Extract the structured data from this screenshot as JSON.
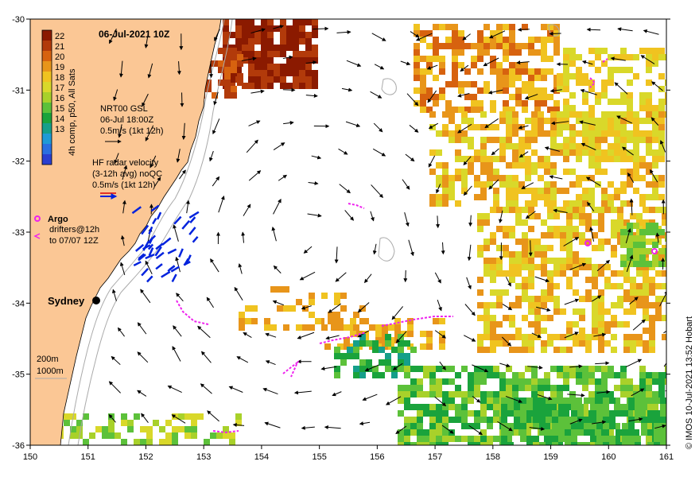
{
  "map": {
    "title": "06-Jul-2021 10Z",
    "colorbar": {
      "ticks": [
        "22",
        "21",
        "20",
        "19",
        "18",
        "17",
        "16",
        "15",
        "14",
        "13"
      ],
      "caption": "4h comp, p50, All Sats",
      "colors": [
        "#8b1a00",
        "#b23a0a",
        "#d7620f",
        "#e8951a",
        "#f0c320",
        "#d9d82a",
        "#a8d12a",
        "#5cc13a",
        "#1aa33c",
        "#159f8a",
        "#1f9ad6",
        "#2a6fe0",
        "#2a3fd0"
      ]
    },
    "legend": {
      "nrt_line1": "NRT00 GSL",
      "nrt_line2": "06-Jul 18:00Z",
      "nrt_line3": "0.5m/s (1kt 12h)",
      "hf_line1": "HF radar velocity",
      "hf_line2": "(3-12h avg) noQC",
      "hf_line3": "0.5m/s (1kt 12h)",
      "argo_label": "Argo",
      "drifters_line1": "drifters@12h",
      "drifters_line2": "to 07/07 12Z",
      "depth_200": "200m",
      "depth_1000": "1000m"
    },
    "city": "Sydney",
    "x_ticks": [
      "150",
      "151",
      "152",
      "153",
      "154",
      "155",
      "156",
      "157",
      "158",
      "159",
      "160",
      "161"
    ],
    "y_ticks": [
      "-30",
      "-31",
      "-32",
      "-33",
      "-34",
      "-35",
      "-36"
    ],
    "x_range": [
      150,
      161
    ],
    "y_range": [
      -36,
      -30
    ],
    "side_label": "© IMOS 10-Jul-2021 13:52 Hobart",
    "colors": {
      "land": "#fbc795",
      "ocean": "#ffffff",
      "current_arrow": "#000000",
      "hf_arrow": "#0022dd",
      "drifter": "#ee22ee",
      "contour": "#aaaaaa"
    }
  }
}
